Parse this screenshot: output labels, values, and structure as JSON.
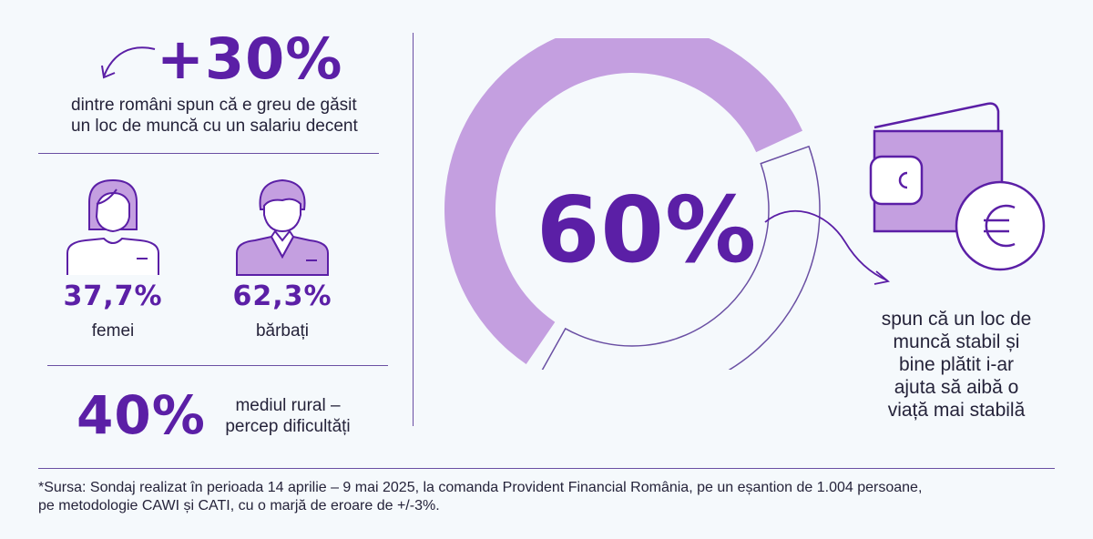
{
  "headline": {
    "value": "+30%",
    "caption_line1": "dintre români spun că e greu de găsit",
    "caption_line2": "un loc de muncă cu un salariu decent"
  },
  "gender": {
    "women": {
      "value": "37,7%",
      "label": "femei",
      "icon": "woman-icon"
    },
    "men": {
      "value": "62,3%",
      "label": "bărbați",
      "icon": "man-icon"
    }
  },
  "rural": {
    "value": "40%",
    "caption_line1": "mediul rural –",
    "caption_line2": "percep dificultăți"
  },
  "main_stat": {
    "value": "60%",
    "fraction": 0.6,
    "caption_lines": [
      "spun că un loc de",
      "muncă stabil și",
      "bine plătit i-ar",
      "ajuta să aibă o",
      "viață mai stabilă"
    ],
    "icon": "wallet-euro-icon"
  },
  "footnote": {
    "line1": "*Sursa: Sondaj realizat în perioada 14 aprilie – 9 mai 2025, la comanda Provident Financial România, pe un eșantion de 1.004 persoane,",
    "line2": "pe metodologie CAWI și CATI, cu o marjă de eroare de +/-3%."
  },
  "colors": {
    "accent": "#5b1fa6",
    "light_accent": "#c49fe0",
    "line": "#6a4fa3",
    "background": "#f5f9fc"
  }
}
